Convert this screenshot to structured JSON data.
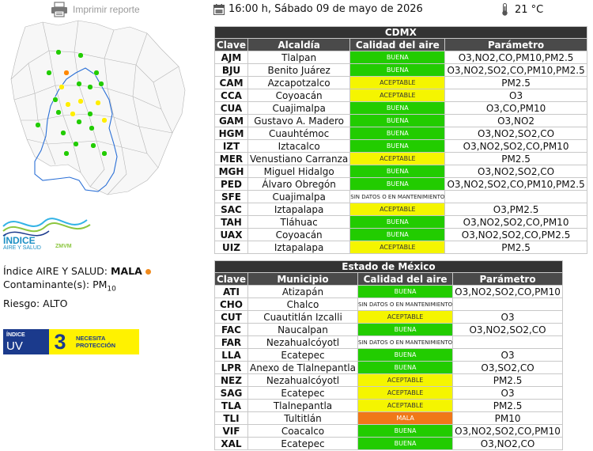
{
  "header": {
    "print_label": "Imprimir reporte",
    "datetime": "16:00 h, Sábado 09 de mayo de 2026",
    "temperature": "21 °C"
  },
  "map": {
    "stations": [
      {
        "color": "#ff8800"
      },
      {
        "color": "#22cc00"
      },
      {
        "color": "#ffee00"
      }
    ]
  },
  "index_logo": {
    "line1": "ÍNDICE",
    "line2": "AIRE Y SALUD",
    "line3": "ZMVM"
  },
  "air_info": {
    "index_label": "Índice AIRE Y SALUD:",
    "index_value": "MALA",
    "pollutant_label": "Contaminante(s):",
    "pollutant_value": "PM",
    "pollutant_sub": "10",
    "risk_label": "Riesgo:",
    "risk_value": "ALTO"
  },
  "uv": {
    "label_small": "ÍNDICE",
    "label_big": "UV",
    "value": "3",
    "advice_line1": "NECESITA",
    "advice_line2": "PROTECCIÓN"
  },
  "cdmx": {
    "caption": "CDMX",
    "headers": {
      "clave": "Clave",
      "name": "Alcaldía",
      "calidad": "Calidad del aire",
      "param": "Parámetro"
    },
    "rows": [
      {
        "code": "AJM",
        "name": "Tlalpan",
        "quality": "BUENA",
        "q": "buena",
        "param": "O3,NO2,CO,PM10,PM2.5"
      },
      {
        "code": "BJU",
        "name": "Benito Juárez",
        "quality": "BUENA",
        "q": "buena",
        "param": "O3,NO2,SO2,CO,PM10,PM2.5"
      },
      {
        "code": "CAM",
        "name": "Azcapotzalco",
        "quality": "ACEPTABLE",
        "q": "aceptable",
        "param": "PM2.5"
      },
      {
        "code": "CCA",
        "name": "Coyoacán",
        "quality": "ACEPTABLE",
        "q": "aceptable",
        "param": "O3"
      },
      {
        "code": "CUA",
        "name": "Cuajimalpa",
        "quality": "BUENA",
        "q": "buena",
        "param": "O3,CO,PM10"
      },
      {
        "code": "GAM",
        "name": "Gustavo A. Madero",
        "quality": "BUENA",
        "q": "buena",
        "param": "O3,NO2"
      },
      {
        "code": "HGM",
        "name": "Cuauhtémoc",
        "quality": "BUENA",
        "q": "buena",
        "param": "O3,NO2,SO2,CO"
      },
      {
        "code": "IZT",
        "name": "Iztacalco",
        "quality": "BUENA",
        "q": "buena",
        "param": "O3,NO2,SO2,CO,PM10"
      },
      {
        "code": "MER",
        "name": "Venustiano Carranza",
        "quality": "ACEPTABLE",
        "q": "aceptable",
        "param": "PM2.5"
      },
      {
        "code": "MGH",
        "name": "Miguel Hidalgo",
        "quality": "BUENA",
        "q": "buena",
        "param": "O3,NO2,SO2,CO"
      },
      {
        "code": "PED",
        "name": "Álvaro Obregón",
        "quality": "BUENA",
        "q": "buena",
        "param": "O3,NO2,SO2,CO,PM10,PM2.5"
      },
      {
        "code": "SFE",
        "name": "Cuajimalpa",
        "quality": "SIN DATOS O EN MANTENIMIENTO",
        "q": "nd",
        "param": ""
      },
      {
        "code": "SAC",
        "name": "Iztapalapa",
        "quality": "ACEPTABLE",
        "q": "aceptable",
        "param": "O3,PM2.5"
      },
      {
        "code": "TAH",
        "name": "Tláhuac",
        "quality": "BUENA",
        "q": "buena",
        "param": "O3,NO2,SO2,CO,PM10"
      },
      {
        "code": "UAX",
        "name": "Coyoacán",
        "quality": "BUENA",
        "q": "buena",
        "param": "O3,NO2,SO2,CO,PM2.5"
      },
      {
        "code": "UIZ",
        "name": "Iztapalapa",
        "quality": "ACEPTABLE",
        "q": "aceptable",
        "param": "PM2.5"
      }
    ]
  },
  "edomex": {
    "caption": "Estado de México",
    "headers": {
      "clave": "Clave",
      "name": "Municipio",
      "calidad": "Calidad del aire",
      "param": "Parámetro"
    },
    "rows": [
      {
        "code": "ATI",
        "name": "Atizapán",
        "quality": "BUENA",
        "q": "buena",
        "param": "O3,NO2,SO2,CO,PM10"
      },
      {
        "code": "CHO",
        "name": "Chalco",
        "quality": "SIN DATOS O EN MANTENIMIENTO",
        "q": "nd",
        "param": ""
      },
      {
        "code": "CUT",
        "name": "Cuautitlán Izcalli",
        "quality": "ACEPTABLE",
        "q": "aceptable",
        "param": "O3"
      },
      {
        "code": "FAC",
        "name": "Naucalpan",
        "quality": "BUENA",
        "q": "buena",
        "param": "O3,NO2,SO2,CO"
      },
      {
        "code": "FAR",
        "name": "Nezahualcóyotl",
        "quality": "SIN DATOS O EN MANTENIMIENTO",
        "q": "nd",
        "param": ""
      },
      {
        "code": "LLA",
        "name": "Ecatepec",
        "quality": "BUENA",
        "q": "buena",
        "param": "O3"
      },
      {
        "code": "LPR",
        "name": "Anexo de Tlalnepantla",
        "quality": "BUENA",
        "q": "buena",
        "param": "O3,SO2,CO"
      },
      {
        "code": "NEZ",
        "name": "Nezahualcóyotl",
        "quality": "ACEPTABLE",
        "q": "aceptable",
        "param": "PM2.5"
      },
      {
        "code": "SAG",
        "name": "Ecatepec",
        "quality": "ACEPTABLE",
        "q": "aceptable",
        "param": "O3"
      },
      {
        "code": "TLA",
        "name": "Tlalnepantla",
        "quality": "ACEPTABLE",
        "q": "aceptable",
        "param": "PM2.5"
      },
      {
        "code": "TLI",
        "name": "Tultitlán",
        "quality": "MALA",
        "q": "mala",
        "param": "PM10"
      },
      {
        "code": "VIF",
        "name": "Coacalco",
        "quality": "BUENA",
        "q": "buena",
        "param": "O3,NO2,SO2,CO,PM10"
      },
      {
        "code": "XAL",
        "name": "Ecatepec",
        "quality": "BUENA",
        "q": "buena",
        "param": "O3,NO2,CO"
      }
    ]
  }
}
